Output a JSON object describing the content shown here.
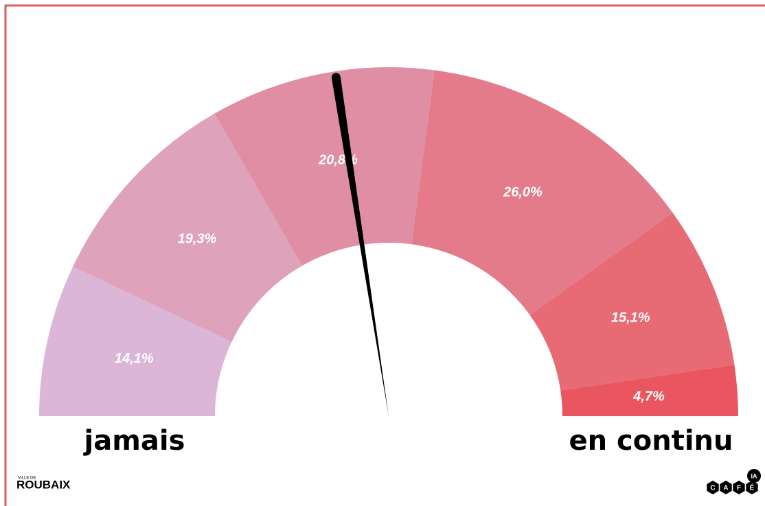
{
  "chart_data": {
    "type": "gauge",
    "categories": [
      null,
      null,
      null,
      null,
      null,
      null
    ],
    "values": [
      14.1,
      19.3,
      20.8,
      26.0,
      15.1,
      4.7
    ],
    "value_labels": [
      "14,1%",
      "19,3%",
      "20,8%",
      "26,0%",
      "15,1%",
      "4,7%"
    ],
    "colors": [
      "#dbb6d7",
      "#dea2bb",
      "#e08ea4",
      "#e37b8a",
      "#e76a74",
      "#ea565f"
    ],
    "needle_value": 45.1,
    "min_label": "jamais",
    "max_label": "en continu"
  },
  "footer": {
    "left_small": "VILLE DE",
    "left": "ROUBAIX",
    "right_letters": [
      "C",
      "A",
      "F",
      "É"
    ],
    "right_badge": "IA"
  }
}
